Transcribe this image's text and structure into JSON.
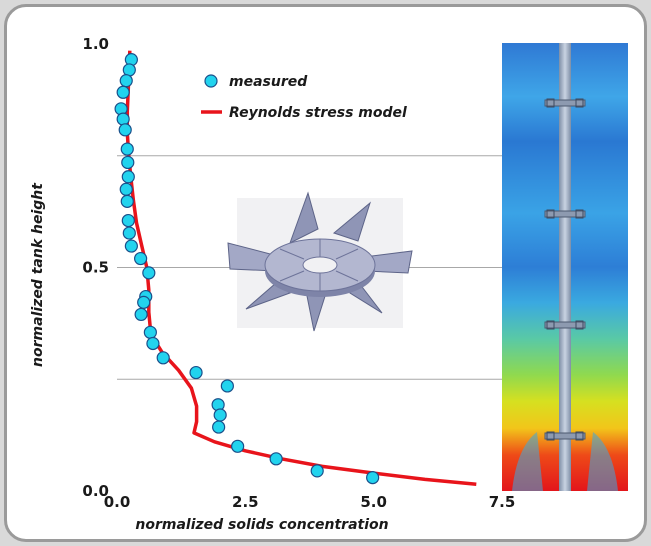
{
  "chart_data": {
    "type": "scatter",
    "xlabel": "normalized solids concentration",
    "ylabel": "normalized tank height",
    "xlim": [
      0,
      7.5
    ],
    "ylim": [
      0,
      1.0
    ],
    "xticks": [
      "0.0",
      "2.5",
      "5.0",
      "7.5"
    ],
    "yticks": [
      "0.0",
      "0.5",
      "1.0"
    ],
    "grid": "horizontal",
    "legend_position": "top-center",
    "series": [
      {
        "name": "measured",
        "kind": "scatter",
        "color": "#22d3ee",
        "points": [
          [
            0.28,
            0.965
          ],
          [
            0.24,
            0.942
          ],
          [
            0.18,
            0.918
          ],
          [
            0.12,
            0.892
          ],
          [
            0.08,
            0.855
          ],
          [
            0.12,
            0.832
          ],
          [
            0.16,
            0.808
          ],
          [
            0.2,
            0.765
          ],
          [
            0.21,
            0.735
          ],
          [
            0.22,
            0.703
          ],
          [
            0.18,
            0.675
          ],
          [
            0.2,
            0.648
          ],
          [
            0.22,
            0.605
          ],
          [
            0.24,
            0.577
          ],
          [
            0.28,
            0.548
          ],
          [
            0.46,
            0.52
          ],
          [
            0.62,
            0.488
          ],
          [
            0.56,
            0.435
          ],
          [
            0.52,
            0.422
          ],
          [
            0.47,
            0.395
          ],
          [
            0.65,
            0.355
          ],
          [
            0.7,
            0.33
          ],
          [
            0.9,
            0.298
          ],
          [
            1.54,
            0.265
          ],
          [
            2.15,
            0.235
          ],
          [
            1.97,
            0.193
          ],
          [
            2.01,
            0.17
          ],
          [
            1.98,
            0.143
          ],
          [
            2.35,
            0.1
          ],
          [
            3.1,
            0.072
          ],
          [
            3.9,
            0.045
          ],
          [
            4.98,
            0.03
          ]
        ]
      },
      {
        "name": "Reynolds stress model",
        "kind": "line",
        "color": "#e8141b",
        "points": [
          [
            0.25,
            0.985
          ],
          [
            0.24,
            0.95
          ],
          [
            0.22,
            0.9
          ],
          [
            0.2,
            0.85
          ],
          [
            0.2,
            0.8
          ],
          [
            0.23,
            0.75
          ],
          [
            0.27,
            0.7
          ],
          [
            0.32,
            0.65
          ],
          [
            0.38,
            0.6
          ],
          [
            0.48,
            0.55
          ],
          [
            0.58,
            0.5
          ],
          [
            0.62,
            0.45
          ],
          [
            0.62,
            0.4
          ],
          [
            0.66,
            0.35
          ],
          [
            0.88,
            0.31
          ],
          [
            1.2,
            0.27
          ],
          [
            1.45,
            0.23
          ],
          [
            1.55,
            0.19
          ],
          [
            1.55,
            0.155
          ],
          [
            1.5,
            0.13
          ],
          [
            1.9,
            0.11
          ],
          [
            2.5,
            0.09
          ],
          [
            3.2,
            0.072
          ],
          [
            4.0,
            0.055
          ],
          [
            5.0,
            0.04
          ],
          [
            6.0,
            0.026
          ],
          [
            7.0,
            0.015
          ]
        ]
      }
    ],
    "inset_image": "impeller-diagram",
    "side_image": "cfd-contour-tank"
  }
}
